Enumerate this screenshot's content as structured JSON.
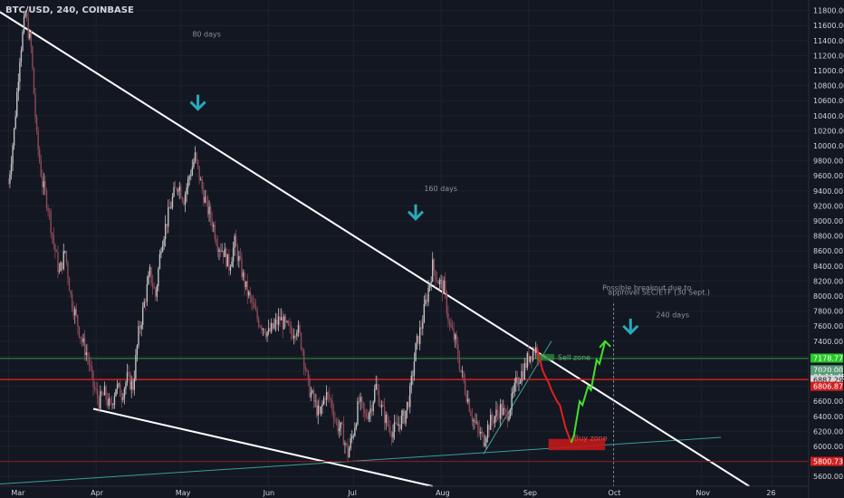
{
  "header": {
    "symbol": "BTC/USD, 240, COINBASE"
  },
  "chart_data": {
    "type": "candlestick",
    "y_axis_ticks": [
      5600,
      5800,
      6000,
      6200,
      6400,
      6600,
      6800,
      7000,
      7200,
      7400,
      7600,
      7800,
      8000,
      8200,
      8400,
      8600,
      8800,
      9000,
      9200,
      9400,
      9600,
      9800,
      10000,
      10200,
      10400,
      10600,
      10800,
      11000,
      11200,
      11400,
      11600,
      11800
    ],
    "ylim": [
      5470,
      11940
    ],
    "x_axis_ticks": [
      {
        "label": "Mar",
        "x": 0
      },
      {
        "label": "Apr",
        "x": 31
      },
      {
        "label": "May",
        "x": 61
      },
      {
        "label": "Jun",
        "x": 92
      },
      {
        "label": "Jul",
        "x": 122
      },
      {
        "label": "Aug",
        "x": 153
      },
      {
        "label": "Sep",
        "x": 184
      },
      {
        "label": "Oct",
        "x": 214
      },
      {
        "label": "Nov",
        "x": 245
      },
      {
        "label": "26",
        "x": 270
      }
    ],
    "xlim": [
      -3,
      283
    ],
    "price_path": [
      [
        0,
        9500
      ],
      [
        2,
        10200
      ],
      [
        4,
        11200
      ],
      [
        6,
        11750
      ],
      [
        8,
        11300
      ],
      [
        10,
        10100
      ],
      [
        12,
        9500
      ],
      [
        14,
        9200
      ],
      [
        16,
        8700
      ],
      [
        18,
        8300
      ],
      [
        20,
        8600
      ],
      [
        22,
        8000
      ],
      [
        24,
        7700
      ],
      [
        26,
        7400
      ],
      [
        28,
        7200
      ],
      [
        30,
        6800
      ],
      [
        32,
        6600
      ],
      [
        34,
        6700
      ],
      [
        36,
        6500
      ],
      [
        38,
        6800
      ],
      [
        40,
        6700
      ],
      [
        42,
        6900
      ],
      [
        44,
        6800
      ],
      [
        46,
        7500
      ],
      [
        48,
        7900
      ],
      [
        50,
        8300
      ],
      [
        52,
        8000
      ],
      [
        54,
        8700
      ],
      [
        56,
        9000
      ],
      [
        58,
        9300
      ],
      [
        60,
        9500
      ],
      [
        62,
        9300
      ],
      [
        64,
        9600
      ],
      [
        66,
        9850
      ],
      [
        68,
        9500
      ],
      [
        70,
        9200
      ],
      [
        72,
        9000
      ],
      [
        74,
        8700
      ],
      [
        76,
        8600
      ],
      [
        78,
        8400
      ],
      [
        80,
        8700
      ],
      [
        82,
        8400
      ],
      [
        84,
        8100
      ],
      [
        86,
        7900
      ],
      [
        88,
        7700
      ],
      [
        90,
        7600
      ],
      [
        92,
        7500
      ],
      [
        94,
        7600
      ],
      [
        96,
        7700
      ],
      [
        98,
        7600
      ],
      [
        100,
        7500
      ],
      [
        102,
        7600
      ],
      [
        104,
        7300
      ],
      [
        106,
        6800
      ],
      [
        108,
        6600
      ],
      [
        110,
        6400
      ],
      [
        112,
        6700
      ],
      [
        114,
        6600
      ],
      [
        116,
        6300
      ],
      [
        118,
        6200
      ],
      [
        120,
        5900
      ],
      [
        122,
        6200
      ],
      [
        124,
        6600
      ],
      [
        126,
        6400
      ],
      [
        128,
        6500
      ],
      [
        130,
        6800
      ],
      [
        132,
        6500
      ],
      [
        134,
        6300
      ],
      [
        136,
        6200
      ],
      [
        138,
        6300
      ],
      [
        140,
        6400
      ],
      [
        142,
        6700
      ],
      [
        144,
        7300
      ],
      [
        146,
        7600
      ],
      [
        148,
        8000
      ],
      [
        150,
        8400
      ],
      [
        152,
        8200
      ],
      [
        154,
        8100
      ],
      [
        156,
        7600
      ],
      [
        158,
        7400
      ],
      [
        160,
        7000
      ],
      [
        162,
        6700
      ],
      [
        164,
        6400
      ],
      [
        166,
        6200
      ],
      [
        168,
        6100
      ],
      [
        170,
        6300
      ],
      [
        172,
        6400
      ],
      [
        174,
        6500
      ],
      [
        176,
        6400
      ],
      [
        178,
        6600
      ],
      [
        180,
        6900
      ],
      [
        182,
        7000
      ],
      [
        184,
        7200
      ],
      [
        186,
        7300
      ],
      [
        188,
        7250
      ]
    ],
    "projection_down": [
      [
        187,
        7300
      ],
      [
        189,
        7000
      ],
      [
        191,
        6850
      ],
      [
        192,
        6750
      ],
      [
        194,
        6600
      ],
      [
        195,
        6550
      ],
      [
        197,
        6250
      ],
      [
        199,
        6050
      ]
    ],
    "projection_up": [
      [
        199,
        6050
      ],
      [
        200,
        6150
      ],
      [
        202,
        6600
      ],
      [
        203,
        6550
      ],
      [
        205,
        6800
      ],
      [
        206,
        6750
      ],
      [
        208,
        7150
      ],
      [
        209,
        7100
      ],
      [
        211,
        7400
      ]
    ],
    "trendlines": {
      "upper_white": [
        [
          -3,
          11780
        ],
        [
          262,
          5470
        ]
      ],
      "lower_white": [
        [
          30,
          6500
        ],
        [
          150,
          5470
        ]
      ],
      "lower_teal": [
        [
          -3,
          5500
        ],
        [
          252,
          6120
        ]
      ],
      "rising_teal": [
        [
          168,
          5900
        ],
        [
          192,
          7400
        ]
      ]
    },
    "horizontal_lines": {
      "green": 7170,
      "red": 6890,
      "red_dark": 5800
    },
    "sell_zone": {
      "label": "Sell zone",
      "x": [
        187,
        193
      ],
      "y": [
        7140,
        7230
      ]
    },
    "buy_zone": {
      "label": "Buy zone",
      "x": [
        191,
        211
      ],
      "y": [
        5950,
        6100
      ]
    },
    "oct_marker_x": 214,
    "arrows": [
      {
        "x": 67,
        "price": 10560
      },
      {
        "x": 144,
        "price": 9100
      },
      {
        "x": 220,
        "price": 7580
      }
    ],
    "annotations": [
      {
        "text": "80 days",
        "x": 65,
        "price": 11450
      },
      {
        "text": "160 days",
        "x": 147,
        "price": 9400
      },
      {
        "text": "Possible breakout due to",
        "x": 210,
        "price": 8080
      },
      {
        "text": "approvel SEC/ETF (30 Sept.)",
        "x": 212,
        "price": 8020
      },
      {
        "text": "240 days",
        "x": 229,
        "price": 7720
      }
    ],
    "price_tags": [
      {
        "value": "7178.77",
        "price": 7175,
        "bg": "#26c926",
        "fg": "#ffffff"
      },
      {
        "value": "7020.00",
        "price": 7020,
        "bg": "#5b9c7a",
        "fg": "#ffffff"
      },
      {
        "value": "01:11:45",
        "price": 6930,
        "bg": "#5b9c7a",
        "fg": "#ffffff"
      },
      {
        "value": "6887.29",
        "price": 6887,
        "bg": "#d6d6d6",
        "fg": "#131722"
      },
      {
        "value": "6806.87",
        "price": 6800,
        "bg": "#d21f1f",
        "fg": "#ffffff"
      },
      {
        "value": "5800.73",
        "price": 5800,
        "bg": "#d21f1f",
        "fg": "#ffffff"
      }
    ],
    "colors": {
      "background": "#131722",
      "up_candle": "#c0c0c0",
      "down_candle": "#8c4a57",
      "trendline": "#ffffff",
      "teal_line": "#3a9e96",
      "green_line": "#2e9a45",
      "red_line": "#d21f1f",
      "arrow": "#2aa9b8",
      "projection_down": "#e0211c",
      "projection_up": "#44e02c",
      "grid": "#1e222d"
    }
  }
}
